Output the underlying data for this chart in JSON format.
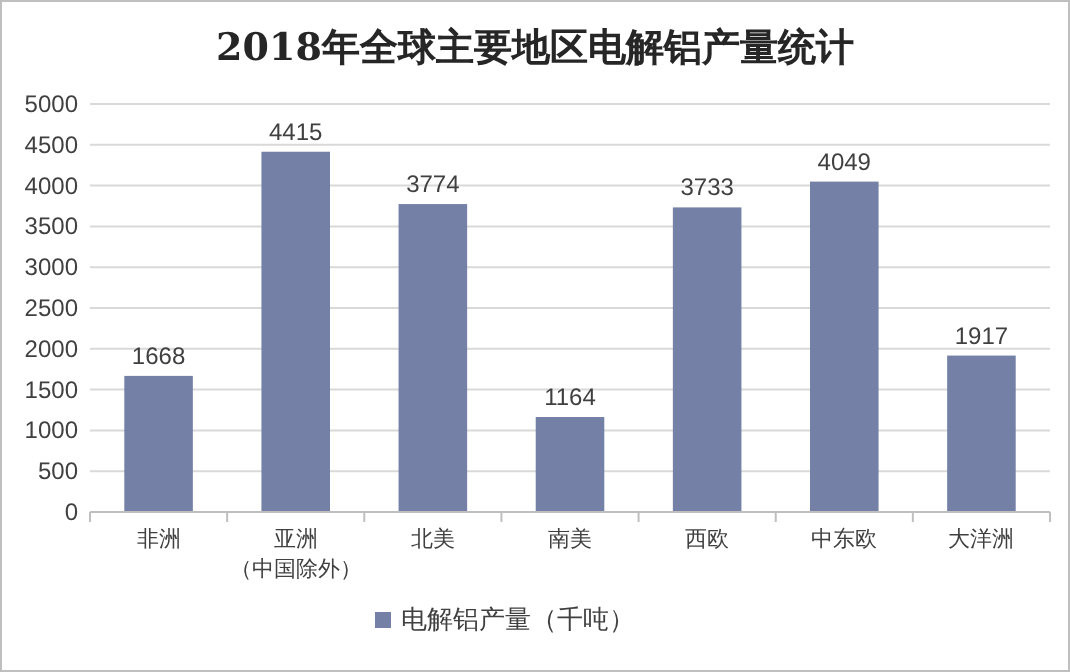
{
  "chart_data": {
    "type": "bar",
    "title": "2018年全球主要地区电解铝产量统计",
    "categories": [
      "非洲",
      "亚洲（中国除外）",
      "北美",
      "南美",
      "西欧",
      "中东欧",
      "大洋洲"
    ],
    "series": [
      {
        "name": "电解铝产量（千吨）",
        "color": "#7580a6",
        "values": [
          1668,
          4415,
          3774,
          1164,
          3733,
          4049,
          1917
        ]
      }
    ],
    "ylim": [
      0,
      5000
    ],
    "yticks": [
      0,
      500,
      1000,
      1500,
      2000,
      2500,
      3000,
      3500,
      4000,
      4500,
      5000
    ],
    "grid": "y",
    "legend": "bottom",
    "data_labels": true
  }
}
